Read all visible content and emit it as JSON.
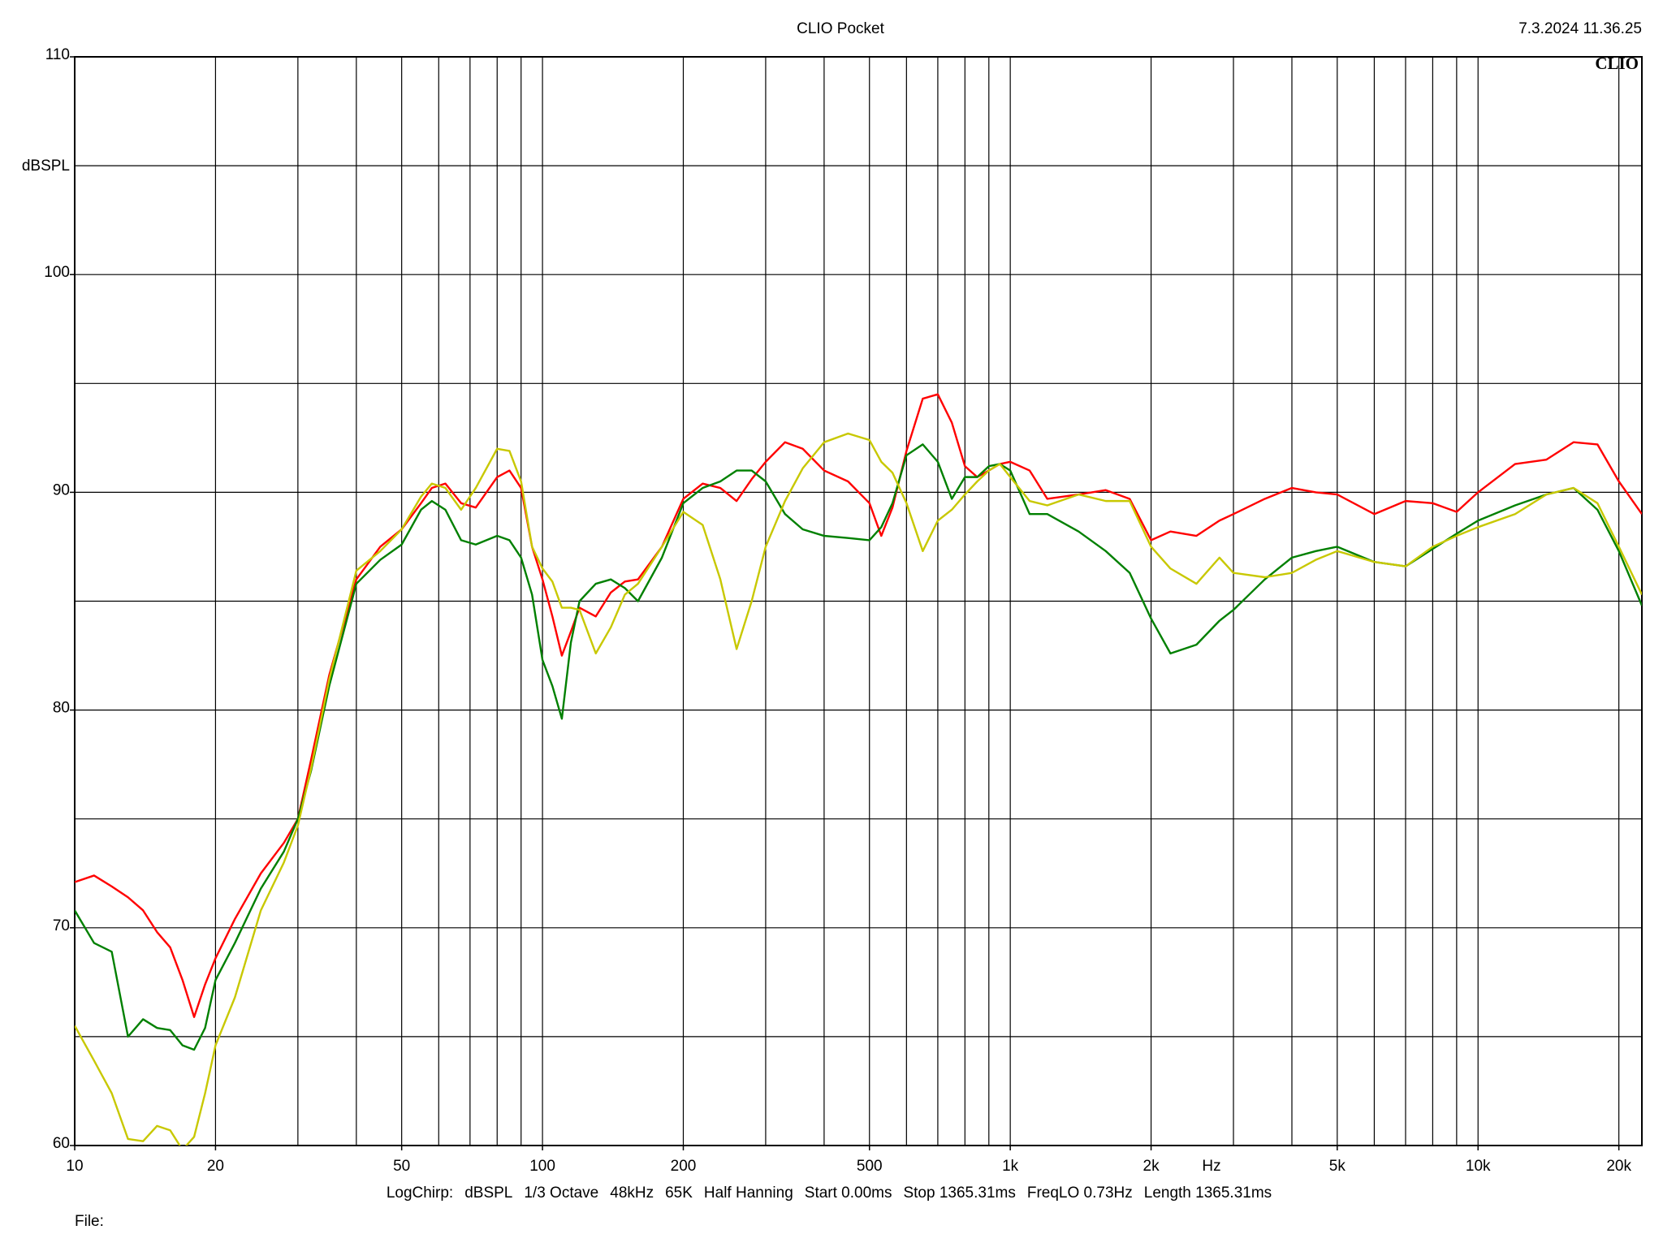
{
  "chart_data": {
    "type": "line",
    "title": "CLIO Pocket",
    "timestamp": "7.3.2024 11.36.25",
    "logo": "CLIO",
    "ylabel": "dBSPL",
    "xlabel": "Hz",
    "footer": [
      "LogChirp:",
      "dBSPL",
      "1/3 Octave",
      "48kHz",
      "65K",
      "Half Hanning",
      "Start 0.00ms",
      "Stop 1365.31ms",
      "FreqLO 0.73Hz",
      "Length 1365.31ms"
    ],
    "file_label": "File:",
    "xscale": "log",
    "grid": true,
    "xlim": [
      10,
      22400
    ],
    "ylim": [
      60,
      110
    ],
    "xticks": [
      10,
      20,
      50,
      100,
      200,
      500,
      {
        "value": 1000,
        "label": "1k"
      },
      {
        "value": 2000,
        "label": "2k"
      },
      {
        "value": 5000,
        "label": "5k"
      },
      {
        "value": 10000,
        "label": "10k"
      },
      {
        "value": 20000,
        "label": "20k"
      }
    ],
    "xgrid": [
      10,
      20,
      30,
      40,
      50,
      60,
      70,
      80,
      90,
      100,
      200,
      300,
      400,
      500,
      600,
      700,
      800,
      900,
      1000,
      2000,
      3000,
      4000,
      5000,
      6000,
      7000,
      8000,
      9000,
      10000,
      20000
    ],
    "yticks": [
      60,
      70,
      80,
      90,
      100,
      110
    ],
    "ygrid": [
      60,
      65,
      70,
      75,
      80,
      85,
      90,
      95,
      100,
      105,
      110
    ],
    "x": [
      10,
      11,
      12,
      13,
      14,
      15,
      16,
      17,
      18,
      19,
      20,
      22,
      25,
      28,
      30,
      32,
      35,
      40,
      45,
      50,
      55,
      58,
      62,
      67,
      72,
      80,
      85,
      90,
      95,
      100,
      105,
      110,
      115,
      120,
      130,
      140,
      150,
      160,
      180,
      200,
      220,
      240,
      260,
      280,
      300,
      330,
      360,
      400,
      450,
      500,
      530,
      560,
      600,
      650,
      700,
      750,
      800,
      850,
      900,
      950,
      1000,
      1100,
      1200,
      1400,
      1600,
      1800,
      2000,
      2200,
      2500,
      2800,
      3000,
      3500,
      4000,
      4500,
      5000,
      6000,
      7000,
      8000,
      9000,
      10000,
      12000,
      14000,
      16000,
      18000,
      20000,
      22400
    ],
    "series": [
      {
        "color": "#ff0000",
        "values": [
          72.1,
          72.4,
          71.9,
          71.4,
          70.8,
          69.8,
          69.1,
          67.6,
          65.9,
          67.4,
          68.6,
          70.4,
          72.5,
          73.9,
          75.0,
          77.7,
          81.6,
          86.0,
          87.5,
          88.3,
          89.5,
          90.2,
          90.4,
          89.5,
          89.3,
          90.7,
          91.0,
          90.2,
          87.5,
          86.0,
          84.3,
          82.5,
          83.6,
          84.7,
          84.3,
          85.4,
          85.9,
          86.0,
          87.5,
          89.7,
          90.4,
          90.2,
          89.6,
          90.6,
          91.4,
          92.3,
          92.0,
          91.0,
          90.5,
          89.5,
          88.0,
          89.3,
          91.9,
          94.3,
          94.5,
          93.2,
          91.2,
          90.7,
          91.0,
          91.3,
          91.4,
          91.0,
          89.7,
          89.9,
          90.1,
          89.7,
          87.8,
          88.2,
          88.0,
          88.7,
          89.0,
          89.7,
          90.2,
          90.0,
          89.9,
          89.0,
          89.6,
          89.5,
          89.1,
          90.0,
          91.3,
          91.5,
          92.3,
          92.2,
          90.5,
          89.0
        ]
      },
      {
        "color": "#008000",
        "values": [
          70.8,
          69.3,
          68.9,
          65.0,
          65.8,
          65.4,
          65.3,
          64.6,
          64.4,
          65.4,
          67.6,
          69.3,
          71.8,
          73.5,
          75.0,
          77.2,
          81.1,
          85.8,
          86.9,
          87.6,
          89.2,
          89.6,
          89.2,
          87.8,
          87.6,
          88.0,
          87.8,
          87.0,
          85.3,
          82.3,
          81.1,
          79.6,
          83.1,
          85.0,
          85.8,
          86.0,
          85.6,
          85.0,
          87.0,
          89.5,
          90.2,
          90.5,
          91.0,
          91.0,
          90.5,
          89.0,
          88.3,
          88.0,
          87.9,
          87.8,
          88.4,
          89.5,
          91.7,
          92.2,
          91.4,
          89.7,
          90.7,
          90.7,
          91.2,
          91.3,
          91.0,
          89.0,
          89.0,
          88.2,
          87.3,
          86.3,
          84.2,
          82.6,
          83.0,
          84.1,
          84.6,
          86.0,
          87.0,
          87.3,
          87.5,
          86.8,
          86.6,
          87.4,
          88.1,
          88.7,
          89.4,
          89.9,
          90.2,
          89.2,
          87.3,
          84.8
        ]
      },
      {
        "color": "#c8c800",
        "values": [
          65.5,
          63.9,
          62.4,
          60.3,
          60.2,
          60.9,
          60.7,
          59.8,
          60.4,
          62.4,
          64.6,
          66.8,
          70.8,
          73.0,
          74.7,
          77.3,
          81.4,
          86.4,
          87.3,
          88.3,
          89.8,
          90.4,
          90.2,
          89.2,
          90.2,
          92.0,
          91.9,
          90.5,
          87.5,
          86.5,
          85.9,
          84.7,
          84.7,
          84.6,
          82.6,
          83.8,
          85.3,
          85.8,
          87.5,
          89.1,
          88.5,
          86.0,
          82.8,
          85.0,
          87.5,
          89.6,
          91.1,
          92.3,
          92.7,
          92.4,
          91.4,
          90.9,
          89.5,
          87.3,
          88.7,
          89.2,
          89.9,
          90.5,
          91.0,
          91.3,
          90.7,
          89.6,
          89.4,
          89.9,
          89.6,
          89.6,
          87.5,
          86.5,
          85.8,
          87.0,
          86.3,
          86.1,
          86.3,
          86.9,
          87.3,
          86.8,
          86.6,
          87.5,
          88.0,
          88.4,
          89.0,
          89.9,
          90.2,
          89.5,
          87.5,
          85.3
        ]
      }
    ]
  }
}
